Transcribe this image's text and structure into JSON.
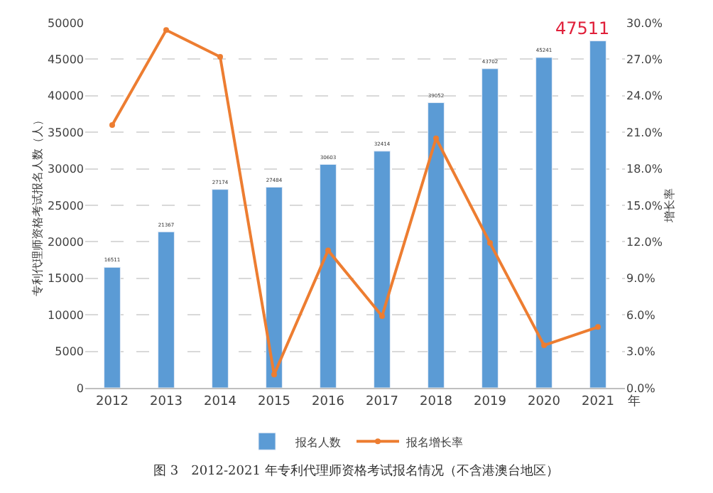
{
  "chart_data": {
    "type": "bar",
    "categories": [
      "2012",
      "2013",
      "2014",
      "2015",
      "2016",
      "2017",
      "2018",
      "2019",
      "2020",
      "2021"
    ],
    "series": [
      {
        "name": "报名人数",
        "color": "#5b9bd5",
        "values": [
          16511,
          21367,
          27174,
          27484,
          30603,
          32414,
          39052,
          43702,
          45241,
          47511
        ],
        "value_labels": [
          "16511",
          "21367",
          "27174",
          "27484",
          "30603",
          "32414",
          "39052",
          "43702",
          "45241",
          null
        ]
      },
      {
        "name": "报名增长率",
        "type": "line",
        "axis": "y2",
        "color": "#ed7d31",
        "marker": "circle",
        "values": [
          21.6,
          29.4,
          27.2,
          1.1,
          11.3,
          5.9,
          20.5,
          11.9,
          3.5,
          5.0
        ]
      }
    ],
    "xlabel": "年",
    "ylabel": "专利代理师资格考试报名人数（人）",
    "y2label": "增长率",
    "ylim": [
      0,
      50000
    ],
    "yticks": [
      0,
      5000,
      10000,
      15000,
      20000,
      25000,
      30000,
      35000,
      40000,
      45000,
      50000
    ],
    "y2lim": [
      0,
      30
    ],
    "y2ticks": [
      {
        "value": 0,
        "label": "0.0%"
      },
      {
        "value": 3,
        "label": "3.0%"
      },
      {
        "value": 6,
        "label": "6.0%"
      },
      {
        "value": 9,
        "label": "9.0%"
      },
      {
        "value": 12,
        "label": "12.0%"
      },
      {
        "value": 15,
        "label": "15.0%"
      },
      {
        "value": 18,
        "label": "18.0%"
      },
      {
        "value": 21,
        "label": "21.0%"
      },
      {
        "value": 24,
        "label": "24.0%"
      },
      {
        "value": 27,
        "label": "27.0%"
      },
      {
        "value": 30,
        "label": "30.0%"
      }
    ],
    "grid": "y",
    "legend": "bottom",
    "annotations": [
      {
        "text": "47511",
        "x": "2021",
        "y": 47511
      },
      "图 3　2012-2021 年专利代理师资格考试报名情况（不含港澳台地区）"
    ]
  }
}
